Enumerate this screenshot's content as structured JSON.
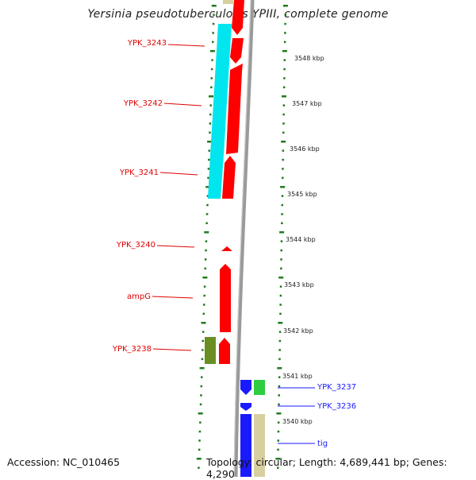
{
  "title": "Yersinia pseudotuberculosis YPIII, complete genome",
  "accession": "Accession: NC_010465",
  "summary": "Topology: circular; Length: 4,689,441 bp; Genes: 4,290",
  "scale_labels": [
    "3548 kbp",
    "3547 kbp",
    "3546 kbp",
    "3545 kbp",
    "3544 kbp",
    "3543 kbp",
    "3542 kbp",
    "3541 kbp",
    "3540 kbp"
  ],
  "genes_left": [
    {
      "id": "YPK_3243",
      "color": "#e00000"
    },
    {
      "id": "YPK_3242",
      "color": "#e00000"
    },
    {
      "id": "YPK_3241",
      "color": "#e00000"
    },
    {
      "id": "YPK_3240",
      "color": "#e00000"
    },
    {
      "id": "ampG",
      "color": "#e00000"
    },
    {
      "id": "YPK_3238",
      "color": "#e00000"
    }
  ],
  "genes_right": [
    {
      "id": "YPK_3237",
      "color": "#1a1aff"
    },
    {
      "id": "YPK_3236",
      "color": "#1a1aff"
    },
    {
      "id": "tig",
      "color": "#1a1aff"
    }
  ],
  "colors": {
    "forward_gene": "#ff0000",
    "reverse_gene": "#0000ff",
    "cyan_track": "#00e5ee",
    "olive_track": "#6b8e23",
    "green_track": "#2ecc40",
    "tan_track": "#d8cfa0",
    "backbone": "#888888",
    "tick": "#1f7a1f"
  }
}
